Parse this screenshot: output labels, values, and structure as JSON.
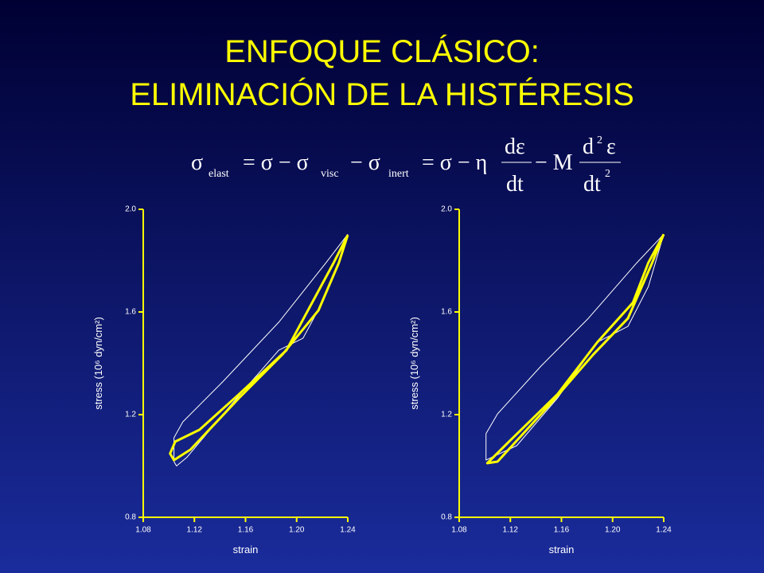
{
  "title": [
    "ENFOQUE CLÁSICO:",
    "ELIMINACIÓN DE LA HISTÉRESIS"
  ],
  "formula": [
    "σ",
    "elast",
    "= σ − σ",
    "visc",
    "− σ",
    "inert",
    "= σ − η",
    "dε",
    "dt",
    "− M",
    "d",
    "2",
    "ε",
    "dt",
    "2"
  ],
  "chart_data": [
    {
      "type": "line",
      "x_label": "strain",
      "y_label": "stress (10⁶ dyn/cm²)",
      "xlim": [
        1.08,
        1.24
      ],
      "xticks": [
        1.08,
        1.12,
        1.16,
        {
          "value": 1.2,
          "label": "1.20"
        },
        1.24
      ],
      "ylim": [
        0.8,
        2.0
      ],
      "yticks": [
        0.8,
        1.2,
        1.6,
        {
          "value": 2,
          "label": "2.0"
        }
      ],
      "series": [
        {
          "color": "#ffffff",
          "width": 1,
          "x": [
            1.24,
            1.223,
            1.186,
            1.142,
            1.111,
            1.104,
            1.104,
            1.106,
            1.114,
            1.148,
            1.186,
            1.205,
            1.22,
            1.233,
            1.24
          ],
          "values": [
            1.903,
            1.792,
            1.56,
            1.327,
            1.172,
            1.11,
            1.017,
            1.0,
            1.033,
            1.234,
            1.451,
            1.498,
            1.637,
            1.792,
            1.903
          ]
        },
        {
          "color": "#ffff00",
          "width": 3,
          "x": [
            1.24,
            1.229,
            1.192,
            1.155,
            1.124,
            1.105,
            1.101,
            1.104,
            1.117,
            1.155,
            1.189,
            1.217,
            1.233,
            1.24
          ],
          "values": [
            1.9,
            1.792,
            1.451,
            1.28,
            1.141,
            1.095,
            1.048,
            1.023,
            1.064,
            1.265,
            1.435,
            1.606,
            1.792,
            1.9
          ]
        }
      ]
    },
    {
      "type": "line",
      "x_label": "strain",
      "y_label": "stress (10⁶ dyn/cm²)",
      "xlim": [
        1.08,
        1.24
      ],
      "xticks": [
        1.08,
        1.12,
        1.16,
        {
          "value": 1.2,
          "label": "1.20"
        },
        1.24
      ],
      "ylim": [
        0.8,
        2.0
      ],
      "yticks": [
        0.8,
        1.2,
        1.6,
        {
          "value": 2,
          "label": "2.0"
        }
      ],
      "series": [
        {
          "color": "#ffffff",
          "width": 1,
          "x": [
            1.24,
            1.219,
            1.181,
            1.144,
            1.11,
            1.101,
            1.101,
            1.125,
            1.157,
            1.188,
            1.212,
            1.228,
            1.24
          ],
          "values": [
            1.903,
            1.792,
            1.575,
            1.389,
            1.203,
            1.126,
            1.023,
            1.079,
            1.265,
            1.482,
            1.544,
            1.699,
            1.903
          ]
        },
        {
          "color": "#ffff00",
          "width": 3,
          "x": [
            1.24,
            1.228,
            1.216,
            1.188,
            1.157,
            1.119,
            1.102,
            1.11,
            1.15,
            1.185,
            1.212,
            1.231,
            1.24
          ],
          "values": [
            1.903,
            1.792,
            1.637,
            1.482,
            1.28,
            1.095,
            1.011,
            1.017,
            1.234,
            1.435,
            1.575,
            1.792,
            1.903
          ]
        }
      ]
    }
  ]
}
